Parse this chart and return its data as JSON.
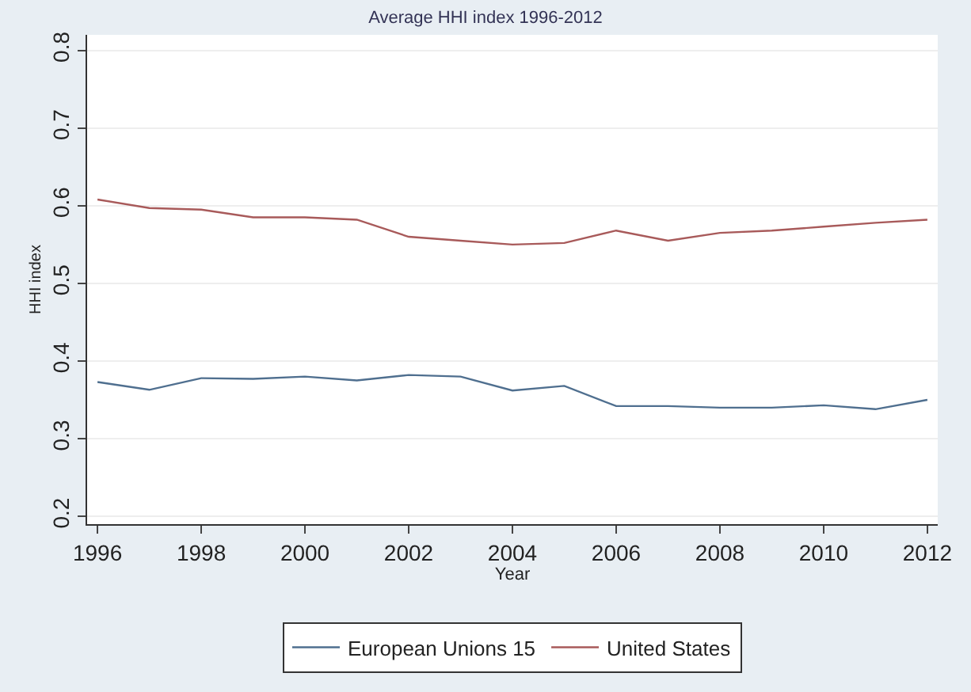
{
  "chart_data": {
    "type": "line",
    "title": "Average HHI index 1996-2012",
    "xlabel": "Year",
    "ylabel": "HHI index",
    "x": [
      1996,
      1997,
      1998,
      1999,
      2000,
      2001,
      2002,
      2003,
      2004,
      2005,
      2006,
      2007,
      2008,
      2009,
      2010,
      2011,
      2012
    ],
    "series": [
      {
        "name": "European Unions 15",
        "color": "#4f6f8f",
        "values": [
          0.373,
          0.363,
          0.378,
          0.377,
          0.38,
          0.375,
          0.382,
          0.38,
          0.362,
          0.368,
          0.342,
          0.342,
          0.34,
          0.34,
          0.343,
          0.338,
          0.35
        ]
      },
      {
        "name": "United States",
        "color": "#a85a5a",
        "values": [
          0.608,
          0.597,
          0.595,
          0.585,
          0.585,
          0.582,
          0.56,
          0.555,
          0.55,
          0.552,
          0.568,
          0.555,
          0.565,
          0.568,
          0.573,
          0.578,
          0.582
        ]
      }
    ],
    "xlim": [
      1995.8,
      2012.2
    ],
    "xticks": [
      1996,
      1998,
      2000,
      2002,
      2004,
      2006,
      2008,
      2010,
      2012
    ],
    "ylim": [
      0.19,
      0.82
    ],
    "yticks": [
      {
        "value": 0.2,
        "label": "0.2"
      },
      {
        "value": 0.3,
        "label": "0.3"
      },
      {
        "value": 0.4,
        "label": "0.4"
      },
      {
        "value": 0.5,
        "label": "0.5"
      },
      {
        "value": 0.6,
        "label": "0.6"
      },
      {
        "value": 0.7,
        "label": "0.7"
      },
      {
        "value": 0.8,
        "label": "0.8"
      }
    ],
    "grid": "y",
    "legend": "bottom",
    "marker": "none",
    "line_style": "solid"
  }
}
